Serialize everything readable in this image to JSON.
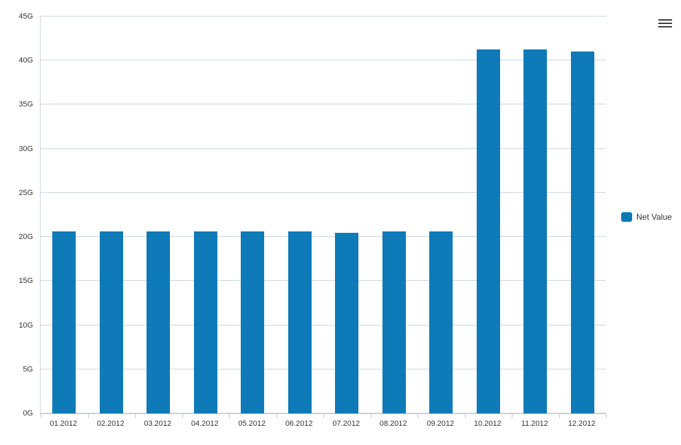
{
  "chart_data": {
    "type": "bar",
    "title": "",
    "categories": [
      "01.2012",
      "02.2012",
      "03.2012",
      "04.2012",
      "05.2012",
      "06.2012",
      "07.2012",
      "08.2012",
      "09.2012",
      "10.2012",
      "11.2012",
      "12.2012"
    ],
    "series": [
      {
        "name": "Net Value",
        "color": "#0e7ab8",
        "values": [
          20.6,
          20.6,
          20.6,
          20.6,
          20.6,
          20.6,
          20.45,
          20.6,
          20.6,
          41.3,
          41.3,
          41.0
        ]
      }
    ],
    "xlabel": "",
    "ylabel": "",
    "ylim": [
      0,
      45
    ],
    "ytick_step": 5,
    "yticks": [
      "0G",
      "5G",
      "10G",
      "15G",
      "20G",
      "25G",
      "30G",
      "35G",
      "40G",
      "45G"
    ],
    "unit_suffix": "G",
    "grid": true,
    "gridline_color": "#ccd6e0",
    "legend_position": "right"
  },
  "legend": {
    "label": "Net Value"
  },
  "menu": {
    "tooltip": "Chart context menu"
  }
}
